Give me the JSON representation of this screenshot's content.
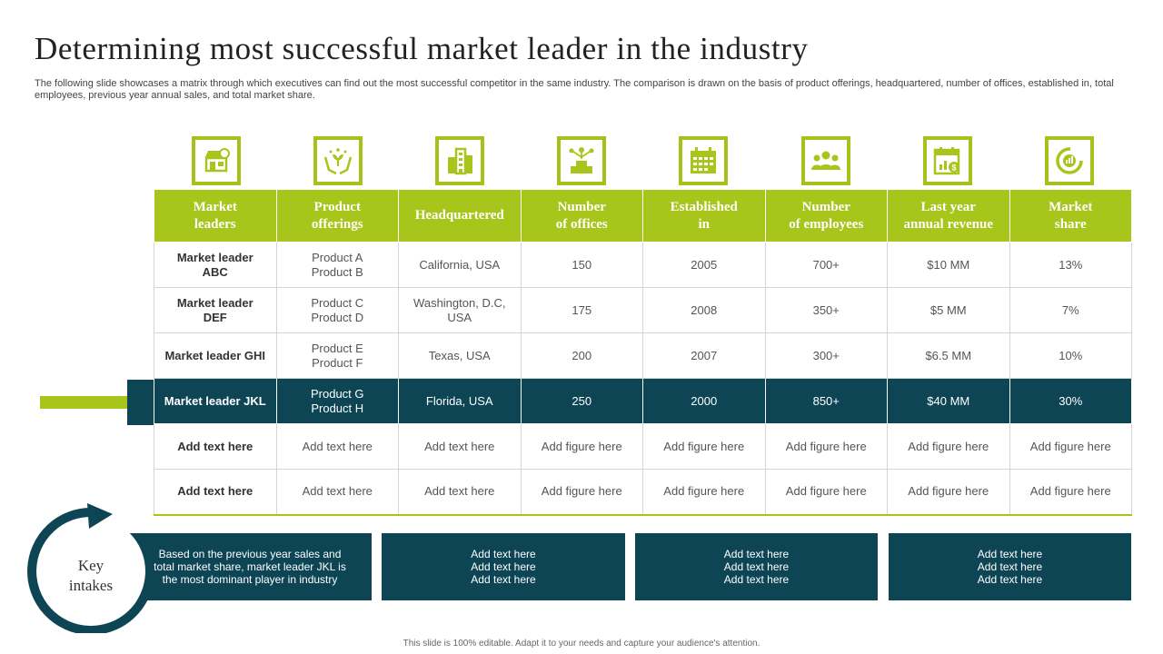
{
  "title": "Determining most successful market leader in the industry",
  "subtitle": "The following slide showcases a matrix through which executives can find out the most successful competitor in the same industry. The comparison is drawn on the basis of product offerings, headquartered, number of offices, established in, total employees, previous year annual sales, and total market share.",
  "icons": [
    "shop-icon",
    "hands-plant-icon",
    "building-icon",
    "office-network-icon",
    "calendar-icon",
    "team-icon",
    "revenue-calendar-icon",
    "pie-chart-icon"
  ],
  "colors": {
    "accent_green": "#a7c51a",
    "dark_teal": "#0d4555"
  },
  "headers": [
    [
      "Market",
      "leaders"
    ],
    [
      "Product",
      "offerings"
    ],
    [
      "Headquartered"
    ],
    [
      "Number",
      "of offices"
    ],
    [
      "Established",
      "in"
    ],
    [
      "Number",
      "of employees"
    ],
    [
      "Last year",
      "annual revenue"
    ],
    [
      "Market",
      "share"
    ]
  ],
  "rows": [
    {
      "leader": [
        "Market leader",
        "ABC"
      ],
      "products": [
        "Product A",
        "Product B"
      ],
      "hq": [
        "California, USA"
      ],
      "offices": "150",
      "established": "2005",
      "employees": "700+",
      "revenue": "$10 MM",
      "share": "13%"
    },
    {
      "leader": [
        "Market leader",
        "DEF"
      ],
      "products": [
        "Product C",
        "Product D"
      ],
      "hq": [
        "Washington, D.C,",
        "USA"
      ],
      "offices": "175",
      "established": "2008",
      "employees": "350+",
      "revenue": "$5 MM",
      "share": "7%"
    },
    {
      "leader": [
        "Market leader GHI"
      ],
      "products": [
        "Product E",
        "Product F"
      ],
      "hq": [
        "Texas, USA"
      ],
      "offices": "200",
      "established": "2007",
      "employees": "300+",
      "revenue": "$6.5 MM",
      "share": "10%"
    },
    {
      "leader": [
        "Market leader JKL"
      ],
      "products": [
        "Product G",
        "Product H"
      ],
      "hq": [
        "Florida, USA"
      ],
      "offices": "250",
      "established": "2000",
      "employees": "850+",
      "revenue": "$40 MM",
      "share": "30%"
    },
    {
      "leader": [
        "Add text here"
      ],
      "products": [
        "Add text here"
      ],
      "hq": [
        "Add text here"
      ],
      "offices": "Add figure here",
      "established": "Add figure here",
      "employees": "Add figure here",
      "revenue": "Add figure here",
      "share": "Add figure here"
    },
    {
      "leader": [
        "Add text here"
      ],
      "products": [
        "Add text here"
      ],
      "hq": [
        "Add text here"
      ],
      "offices": "Add figure here",
      "established": "Add figure here",
      "employees": "Add figure here",
      "revenue": "Add figure here",
      "share": "Add figure here"
    }
  ],
  "key_intakes": {
    "label": [
      "Key",
      "intakes"
    ],
    "boxes": [
      [
        "Based on the previous year sales and",
        "total market share, market leader JKL is",
        "the most dominant player in industry"
      ],
      [
        "Add text here",
        "Add text here",
        "Add text here"
      ],
      [
        "Add text here",
        "Add text here",
        "Add text here"
      ],
      [
        "Add text here",
        "Add text here",
        "Add text here"
      ]
    ]
  },
  "footer": "This slide is 100% editable. Adapt it to your needs and capture your audience's attention."
}
